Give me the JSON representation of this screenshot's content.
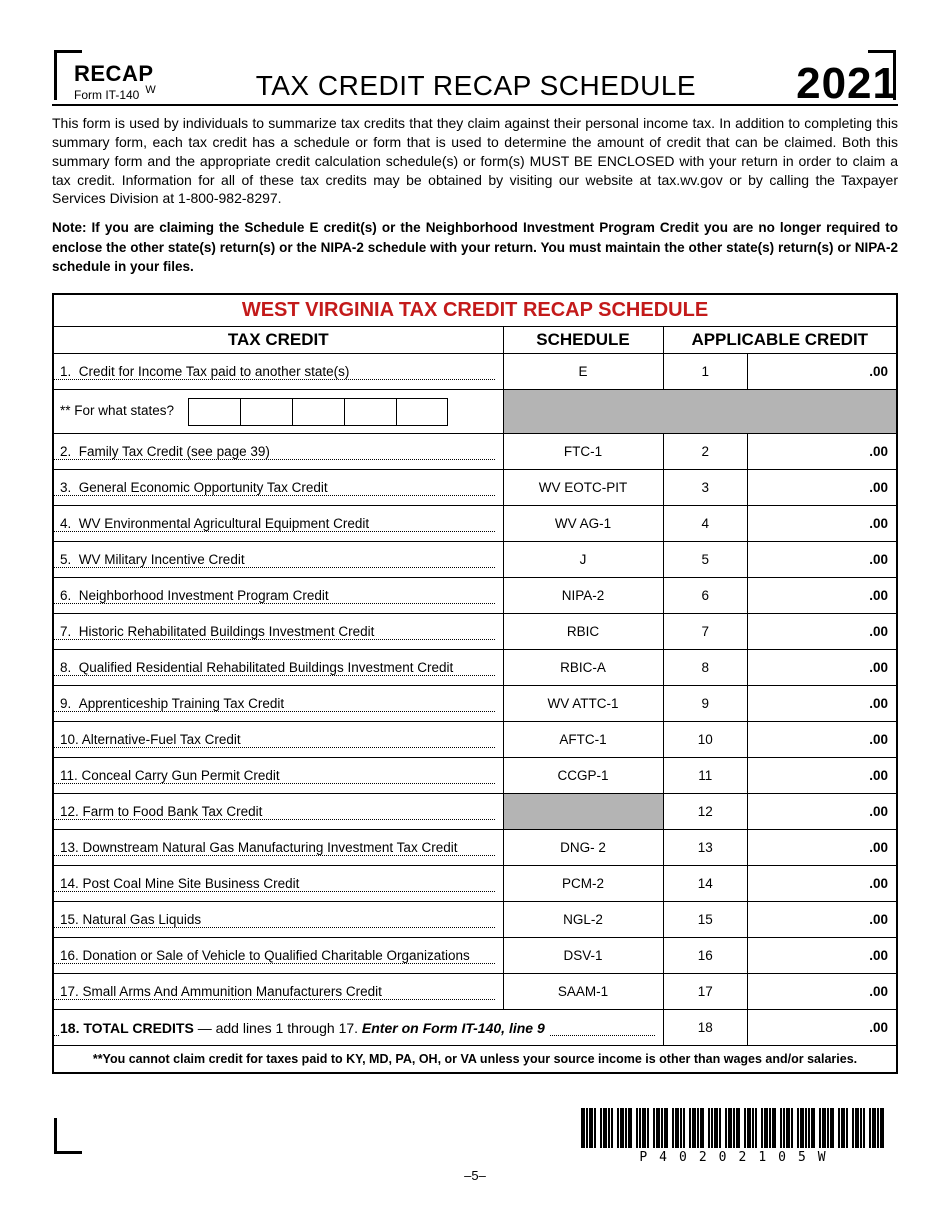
{
  "header": {
    "recap": "RECAP",
    "form": "Form IT-140",
    "w": "W",
    "title": "TAX CREDIT RECAP SCHEDULE",
    "year": "2021"
  },
  "intro": "This form is used by individuals to summarize tax credits that they claim against their personal income tax. In addition to completing this summary form, each tax credit has a schedule or form that is used to determine the amount of credit that can be claimed. Both this summary form and the appropriate credit calculation schedule(s) or form(s) MUST BE ENCLOSED with your return in order to claim a tax credit. Information for all of these tax credits may be obtained by visiting our website at tax.wv.gov or by calling the Taxpayer Services Division at 1-800-982-8297.",
  "note": "Note: If you are claiming the Schedule E credit(s) or the Neighborhood Investment Program Credit you are no longer required to enclose the other state(s) return(s) or the NIPA-2 schedule with your return. You must maintain the other state(s) return(s) or NIPA-2 schedule in your files.",
  "table": {
    "title": "WEST VIRGINIA TAX CREDIT RECAP SCHEDULE",
    "head_credit": "TAX CREDIT",
    "head_schedule": "SCHEDULE",
    "head_applicable": "APPLICABLE CREDIT",
    "for_states": "** For what states?",
    "footnote": "**You cannot claim credit for taxes paid to KY, MD, PA, OH, or VA unless your source income is other than wages and/or salaries."
  },
  "rows": {
    "r1": {
      "n": "1.",
      "desc": "Credit for Income Tax paid to another state(s)",
      "sched": "E",
      "ln": "1",
      "amt": ".00"
    },
    "r2": {
      "n": "2.",
      "desc": "Family Tax Credit (see page 39)",
      "sched": "FTC-1",
      "ln": "2",
      "amt": ".00"
    },
    "r3": {
      "n": "3.",
      "desc": "General Economic Opportunity Tax Credit",
      "sched": "WV EOTC-PIT",
      "ln": "3",
      "amt": ".00"
    },
    "r4": {
      "n": "4.",
      "desc": "WV Environmental Agricultural Equipment Credit",
      "sched": "WV AG-1",
      "ln": "4",
      "amt": ".00"
    },
    "r5": {
      "n": "5.",
      "desc": "WV Military Incentive Credit",
      "sched": "J",
      "ln": "5",
      "amt": ".00"
    },
    "r6": {
      "n": "6.",
      "desc": "Neighborhood Investment Program Credit",
      "sched": "NIPA-2",
      "ln": "6",
      "amt": ".00"
    },
    "r7": {
      "n": "7.",
      "desc": "Historic Rehabilitated Buildings Investment Credit",
      "sched": "RBIC",
      "ln": "7",
      "amt": ".00"
    },
    "r8": {
      "n": "8.",
      "desc": "Qualified Residential Rehabilitated Buildings Investment Credit",
      "sched": "RBIC-A",
      "ln": "8",
      "amt": ".00"
    },
    "r9": {
      "n": "9.",
      "desc": "Apprenticeship Training Tax Credit",
      "sched": "WV ATTC-1",
      "ln": "9",
      "amt": ".00"
    },
    "r10": {
      "n": "10.",
      "desc": "Alternative-Fuel Tax Credit",
      "sched": "AFTC-1",
      "ln": "10",
      "amt": ".00"
    },
    "r11": {
      "n": "11.",
      "desc": "Conceal Carry Gun Permit Credit",
      "sched": "CCGP-1",
      "ln": "11",
      "amt": ".00"
    },
    "r12": {
      "n": "12.",
      "desc": "Farm to Food Bank Tax Credit",
      "sched": "",
      "ln": "12",
      "amt": ".00"
    },
    "r13": {
      "n": "13.",
      "desc": "Downstream Natural Gas Manufacturing Investment Tax Credit",
      "sched": "DNG- 2",
      "ln": "13",
      "amt": ".00"
    },
    "r14": {
      "n": "14.",
      "desc": "Post Coal Mine Site Business Credit",
      "sched": "PCM-2",
      "ln": "14",
      "amt": ".00"
    },
    "r15": {
      "n": "15.",
      "desc": "Natural Gas Liquids",
      "sched": "NGL-2",
      "ln": "15",
      "amt": ".00"
    },
    "r16": {
      "n": "16.",
      "desc": "Donation or Sale of Vehicle to Qualified Charitable Organizations",
      "sched": "DSV-1",
      "ln": "16",
      "amt": ".00"
    },
    "r17": {
      "n": "17.",
      "desc": "Small Arms And Ammunition Manufacturers Credit",
      "sched": "SAAM-1",
      "ln": "17",
      "amt": ".00"
    }
  },
  "total": {
    "label_a": "18. TOTAL CREDITS",
    "label_b": " — add lines 1 through 17. ",
    "label_c": "Enter on Form IT-140, line 9",
    "ln": "18",
    "amt": ".00"
  },
  "barcode_text": "P40202105W",
  "pagenum": "–5–"
}
